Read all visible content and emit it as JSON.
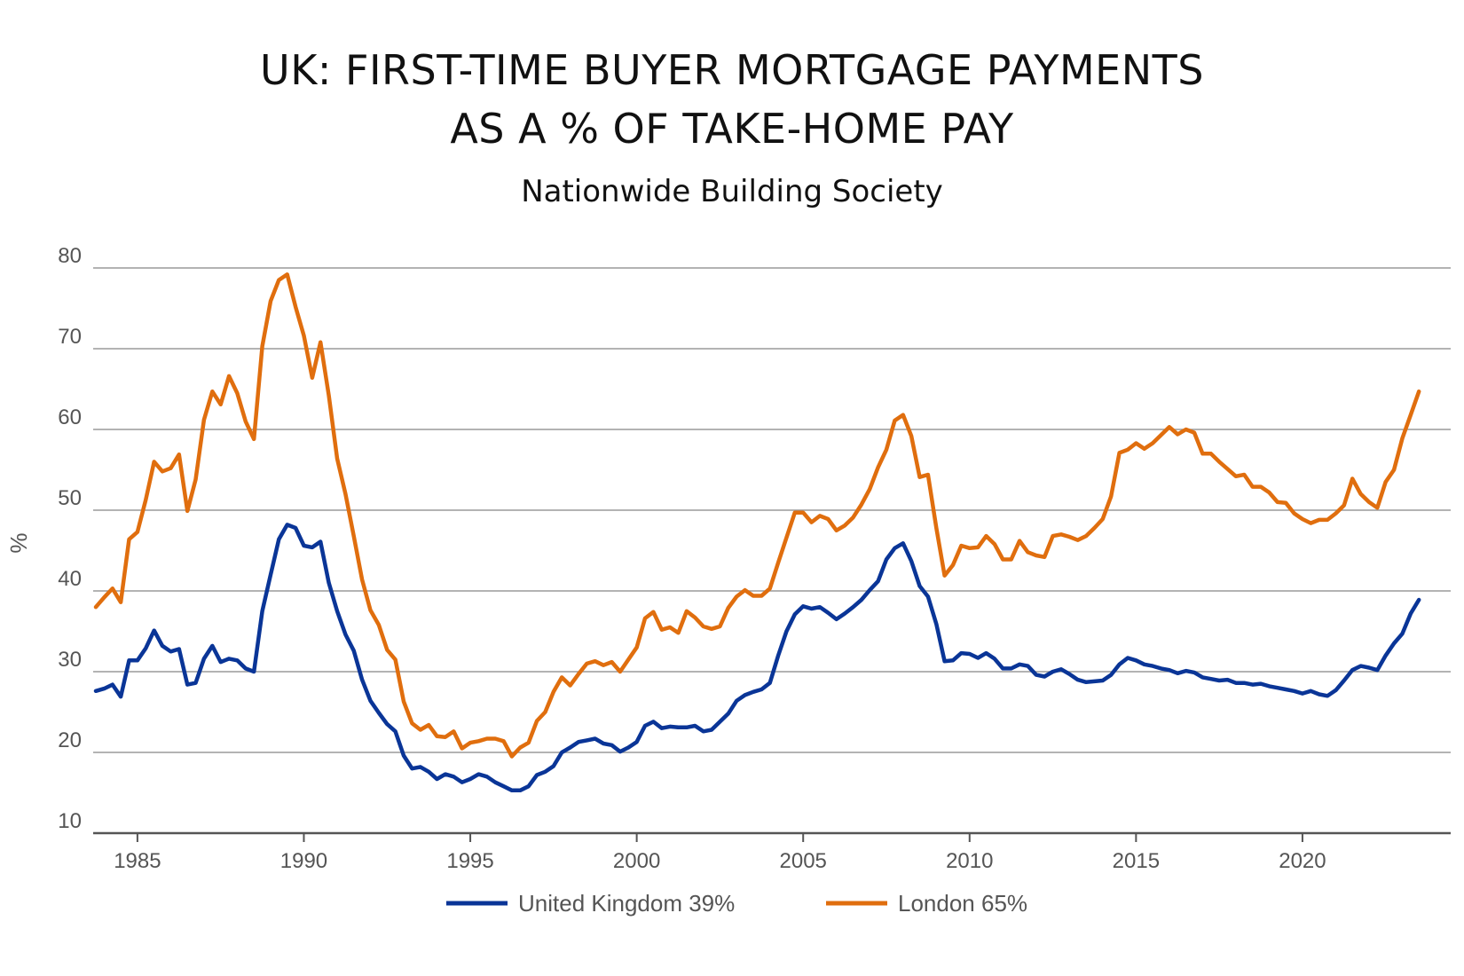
{
  "chart_data": {
    "type": "line",
    "title_line1": "UK: FIRST-TIME BUYER MORTGAGE PAYMENTS",
    "title_line2": "AS A % OF TAKE-HOME PAY",
    "subtitle": "Nationwide Building Society",
    "ylabel": "%",
    "xlabel": "",
    "ylim": [
      10,
      80
    ],
    "yticks": [
      10,
      20,
      30,
      40,
      50,
      60,
      70,
      80
    ],
    "xlim": [
      1983.75,
      2024.0
    ],
    "xticks": [
      1985,
      1990,
      1995,
      2000,
      2005,
      2010,
      2015,
      2020
    ],
    "grid": true,
    "legend_position": "bottom-center",
    "x": [
      1983.75,
      1984.0,
      1984.25,
      1984.5,
      1984.75,
      1985.0,
      1985.25,
      1985.5,
      1985.75,
      1986.0,
      1986.25,
      1986.5,
      1986.75,
      1987.0,
      1987.25,
      1987.5,
      1987.75,
      1988.0,
      1988.25,
      1988.5,
      1988.75,
      1989.0,
      1989.25,
      1989.5,
      1989.75,
      1990.0,
      1990.25,
      1990.5,
      1990.75,
      1991.0,
      1991.25,
      1991.5,
      1991.75,
      1992.0,
      1992.25,
      1992.5,
      1992.75,
      1993.0,
      1993.25,
      1993.5,
      1993.75,
      1994.0,
      1994.25,
      1994.5,
      1994.75,
      1995.0,
      1995.25,
      1995.5,
      1995.75,
      1996.0,
      1996.25,
      1996.5,
      1996.75,
      1997.0,
      1997.25,
      1997.5,
      1997.75,
      1998.0,
      1998.25,
      1998.5,
      1998.75,
      1999.0,
      1999.25,
      1999.5,
      1999.75,
      2000.0,
      2000.25,
      2000.5,
      2000.75,
      2001.0,
      2001.25,
      2001.5,
      2001.75,
      2002.0,
      2002.25,
      2002.5,
      2002.75,
      2003.0,
      2003.25,
      2003.5,
      2003.75,
      2004.0,
      2004.25,
      2004.5,
      2004.75,
      2005.0,
      2005.25,
      2005.5,
      2005.75,
      2006.0,
      2006.25,
      2006.5,
      2006.75,
      2007.0,
      2007.25,
      2007.5,
      2007.75,
      2008.0,
      2008.25,
      2008.5,
      2008.75,
      2009.0,
      2009.25,
      2009.5,
      2009.75,
      2010.0,
      2010.25,
      2010.5,
      2010.75,
      2011.0,
      2011.25,
      2011.5,
      2011.75,
      2012.0,
      2012.25,
      2012.5,
      2012.75,
      2013.0,
      2013.25,
      2013.5,
      2013.75,
      2014.0,
      2014.25,
      2014.5,
      2014.75,
      2015.0,
      2015.25,
      2015.5,
      2015.75,
      2016.0,
      2016.25,
      2016.5,
      2016.75,
      2017.0,
      2017.25,
      2017.5,
      2017.75,
      2018.0,
      2018.25,
      2018.5,
      2018.75,
      2019.0,
      2019.25,
      2019.5,
      2019.75,
      2020.0,
      2020.25,
      2020.5,
      2020.75,
      2021.0,
      2021.25,
      2021.5,
      2021.75,
      2022.0,
      2022.25,
      2022.5,
      2022.75,
      2023.0,
      2023.25,
      2023.5
    ],
    "series": [
      {
        "name": "United Kingdom 39%",
        "color": "#0a3597",
        "values": [
          27.6,
          27.9,
          28.4,
          26.9,
          31.4,
          31.4,
          32.9,
          35.1,
          33.2,
          32.5,
          32.8,
          28.4,
          28.6,
          31.6,
          33.2,
          31.2,
          31.6,
          31.4,
          30.4,
          30.0,
          37.5,
          42.0,
          46.4,
          48.2,
          47.8,
          45.6,
          45.4,
          46.1,
          41.0,
          37.5,
          34.6,
          32.6,
          29.0,
          26.4,
          24.9,
          23.5,
          22.6,
          19.6,
          18.0,
          18.2,
          17.6,
          16.7,
          17.3,
          17.0,
          16.3,
          16.7,
          17.3,
          17.0,
          16.3,
          15.8,
          15.3,
          15.3,
          15.8,
          17.2,
          17.6,
          18.3,
          20.0,
          20.6,
          21.3,
          21.5,
          21.7,
          21.1,
          20.9,
          20.1,
          20.6,
          21.3,
          23.3,
          23.8,
          23.0,
          23.2,
          23.1,
          23.1,
          23.3,
          22.6,
          22.8,
          23.8,
          24.8,
          26.4,
          27.1,
          27.5,
          27.8,
          28.6,
          32.0,
          35.0,
          37.1,
          38.1,
          37.8,
          38.0,
          37.3,
          36.5,
          37.2,
          38.0,
          38.9,
          40.1,
          41.2,
          43.9,
          45.3,
          45.9,
          43.7,
          40.6,
          39.3,
          35.9,
          31.3,
          31.4,
          32.3,
          32.2,
          31.7,
          32.3,
          31.6,
          30.4,
          30.4,
          30.9,
          30.7,
          29.6,
          29.4,
          30.0,
          30.3,
          29.7,
          29.0,
          28.7,
          28.8,
          28.9,
          29.6,
          30.9,
          31.7,
          31.4,
          30.9,
          30.7,
          30.4,
          30.2,
          29.8,
          30.1,
          29.9,
          29.3,
          29.1,
          28.9,
          29.0,
          28.6,
          28.6,
          28.4,
          28.5,
          28.2,
          28.0,
          27.8,
          27.6,
          27.3,
          27.6,
          27.2,
          27.0,
          27.7,
          28.9,
          30.2,
          30.7,
          30.5,
          30.2,
          32.0,
          33.5,
          34.7,
          37.2,
          38.9
        ]
      },
      {
        "name": "London 65%",
        "color": "#e06e0e",
        "values": [
          38.0,
          39.2,
          40.3,
          38.6,
          46.4,
          47.3,
          51.3,
          56.0,
          54.8,
          55.2,
          56.9,
          49.9,
          53.8,
          61.2,
          64.7,
          63.1,
          66.6,
          64.5,
          61.0,
          58.8,
          70.3,
          75.9,
          78.5,
          79.2,
          75.2,
          71.6,
          66.4,
          70.8,
          64.2,
          56.4,
          52.0,
          46.8,
          41.4,
          37.6,
          35.8,
          32.7,
          31.5,
          26.3,
          23.6,
          22.8,
          23.4,
          22.0,
          21.9,
          22.6,
          20.5,
          21.2,
          21.4,
          21.7,
          21.7,
          21.4,
          19.5,
          20.6,
          21.2,
          23.9,
          25.0,
          27.5,
          29.3,
          28.3,
          29.7,
          31.0,
          31.3,
          30.8,
          31.2,
          30.0,
          31.5,
          33.0,
          36.6,
          37.4,
          35.2,
          35.5,
          34.8,
          37.5,
          36.7,
          35.6,
          35.3,
          35.6,
          37.9,
          39.3,
          40.1,
          39.4,
          39.4,
          40.3,
          43.5,
          46.6,
          49.7,
          49.7,
          48.5,
          49.3,
          48.9,
          47.5,
          48.1,
          49.1,
          50.7,
          52.6,
          55.3,
          57.5,
          61.1,
          61.8,
          59.2,
          54.1,
          54.4,
          47.8,
          41.9,
          43.2,
          45.6,
          45.3,
          45.4,
          46.8,
          45.8,
          43.9,
          43.9,
          46.2,
          44.8,
          44.4,
          44.2,
          46.8,
          47.0,
          46.7,
          46.3,
          46.8,
          47.8,
          48.9,
          51.7,
          57.1,
          57.5,
          58.3,
          57.6,
          58.3,
          59.3,
          60.3,
          59.4,
          60.0,
          59.6,
          57.0,
          57.0,
          56.0,
          55.1,
          54.2,
          54.4,
          52.9,
          52.9,
          52.2,
          51.0,
          50.9,
          49.6,
          48.9,
          48.4,
          48.8,
          48.8,
          49.6,
          50.6,
          53.9,
          52.0,
          51.0,
          50.3,
          53.5,
          55.0,
          58.9,
          61.8,
          64.7
        ]
      }
    ]
  }
}
